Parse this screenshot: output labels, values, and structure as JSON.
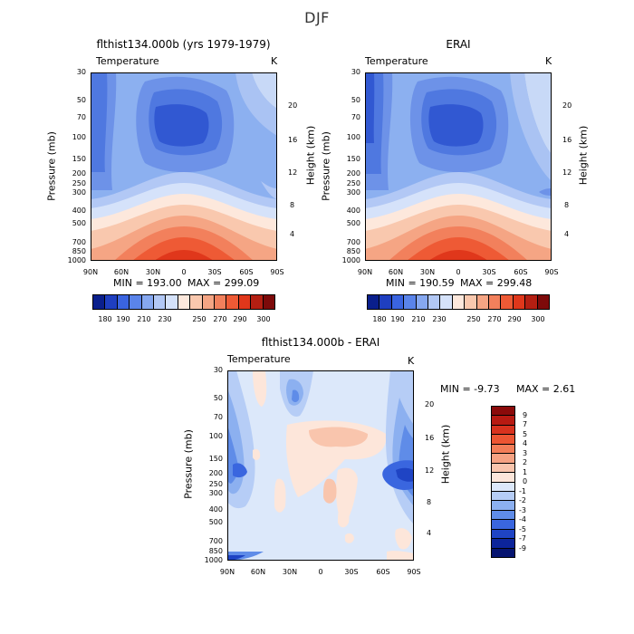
{
  "suptitle": "DJF",
  "chart_data": [
    {
      "type": "heatmap",
      "title": "flthist134.000b (yrs 1979-1979)",
      "left_label": "Temperature",
      "right_label": "K",
      "xlabel": "",
      "ylabel": "Pressure (mb)",
      "ylabel_right": "Height (km)",
      "x_ticks": [
        "90N",
        "60N",
        "30N",
        "0",
        "30S",
        "60S",
        "90S"
      ],
      "y_ticks": [
        "30",
        "50",
        "70",
        "100",
        "150",
        "200",
        "250",
        "300",
        "400",
        "500",
        "700",
        "850",
        "1000"
      ],
      "y_right_ticks": [
        "20",
        "16",
        "12",
        "8",
        "4"
      ],
      "min_label": "MIN =  193.00",
      "max_label": "MAX =  299.09",
      "colorbar_labels": [
        "180",
        "190",
        "210",
        "230",
        "250",
        "270",
        "290",
        "300"
      ],
      "colorbar_colors": [
        "#0a1f8c",
        "#1f3fc0",
        "#3a64e0",
        "#5a84ea",
        "#86a8f0",
        "#b2c8f5",
        "#d5e2fa",
        "#fde8dc",
        "#f9c8ae",
        "#f5a584",
        "#f2805c",
        "#ee5a35",
        "#e0371b",
        "#b41f12",
        "#7d0a0a"
      ]
    },
    {
      "type": "heatmap",
      "title": "ERAI",
      "left_label": "Temperature",
      "right_label": "K",
      "xlabel": "",
      "ylabel": "Pressure (mb)",
      "ylabel_right": "Height (km)",
      "x_ticks": [
        "90N",
        "60N",
        "30N",
        "0",
        "30S",
        "60S",
        "90S"
      ],
      "y_ticks": [
        "30",
        "50",
        "70",
        "100",
        "150",
        "200",
        "250",
        "300",
        "400",
        "500",
        "700",
        "850",
        "1000"
      ],
      "y_right_ticks": [
        "20",
        "16",
        "12",
        "8",
        "4"
      ],
      "min_label": "MIN =  190.59",
      "max_label": "MAX =  299.48",
      "colorbar_labels": [
        "180",
        "190",
        "210",
        "230",
        "250",
        "270",
        "290",
        "300"
      ],
      "colorbar_colors": [
        "#0a1f8c",
        "#1f3fc0",
        "#3a64e0",
        "#5a84ea",
        "#86a8f0",
        "#b2c8f5",
        "#d5e2fa",
        "#fde8dc",
        "#f9c8ae",
        "#f5a584",
        "#f2805c",
        "#ee5a35",
        "#e0371b",
        "#b41f12",
        "#7d0a0a"
      ]
    },
    {
      "type": "heatmap",
      "title": "flthist134.000b - ERAI",
      "left_label": "Temperature",
      "right_label": "K",
      "xlabel": "",
      "ylabel": "Pressure (mb)",
      "ylabel_right": "Height (km)",
      "x_ticks": [
        "90N",
        "60N",
        "30N",
        "0",
        "30S",
        "60S",
        "90S"
      ],
      "y_ticks": [
        "30",
        "50",
        "70",
        "100",
        "150",
        "200",
        "250",
        "300",
        "400",
        "500",
        "700",
        "850",
        "1000"
      ],
      "y_right_ticks": [
        "20",
        "16",
        "12",
        "8",
        "4"
      ],
      "min_label": "MIN =  -9.73",
      "max_label": "MAX =   2.61",
      "colorbar_labels": [
        "9",
        "7",
        "5",
        "4",
        "3",
        "2",
        "1",
        "0",
        "-1",
        "-2",
        "-3",
        "-4",
        "-5",
        "-7",
        "-9"
      ],
      "colorbar_colors": [
        "#8b0a0a",
        "#b81a12",
        "#d8321e",
        "#ec5533",
        "#f27d58",
        "#f5a283",
        "#f9c5ad",
        "#fde6da",
        "#dce8fa",
        "#b6cdf6",
        "#8cb0f0",
        "#5f8ce8",
        "#3a66df",
        "#1f44c4",
        "#0c249a",
        "#061470"
      ]
    }
  ]
}
